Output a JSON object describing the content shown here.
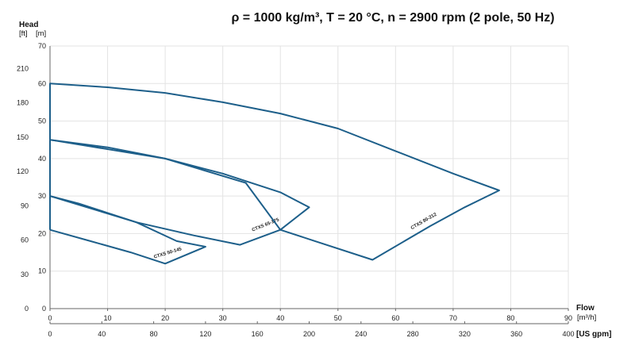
{
  "chart_data": {
    "type": "line",
    "title": "ρ = 1000 kg/m³, T = 20 °C, n = 2900 rpm (2 pole, 50 Hz)",
    "y_title": "Head",
    "y_units": {
      "ft": "[ft]",
      "m": "[m]"
    },
    "x_title": "Flow",
    "x_units": {
      "m3h": "[m³/h]",
      "usgpm": "[US gpm]"
    },
    "x_m3h": {
      "range": [
        0,
        90
      ],
      "ticks": [
        "0",
        "10",
        "20",
        "30",
        "40",
        "50",
        "60",
        "70",
        "80",
        "90"
      ]
    },
    "x_usgpm": {
      "range": [
        0,
        400
      ],
      "ticks": [
        "0",
        "40",
        "80",
        "120",
        "160",
        "200",
        "240",
        "280",
        "320",
        "360",
        "400"
      ]
    },
    "y_m": {
      "range": [
        0,
        70
      ],
      "ticks": [
        "0",
        "10",
        "20",
        "30",
        "40",
        "50",
        "60",
        "70"
      ]
    },
    "y_ft": {
      "ticks": [
        "0",
        "30",
        "60",
        "90",
        "120",
        "150",
        "180",
        "210"
      ]
    },
    "grid": true,
    "series": [
      {
        "name": "CTXS 50-145",
        "label_at": [
          20.5,
          14.5
        ],
        "label_angle": -17,
        "outline": [
          [
            0,
            21
          ],
          [
            7,
            18
          ],
          [
            14,
            15
          ],
          [
            20,
            12
          ],
          [
            27,
            16.5
          ],
          [
            22,
            18
          ],
          [
            15,
            23
          ],
          [
            10,
            25.5
          ],
          [
            5,
            28
          ],
          [
            0,
            30
          ],
          [
            0,
            21
          ]
        ]
      },
      {
        "name": "CTXS 65-175",
        "label_at": [
          37.5,
          22
        ],
        "label_angle": -22,
        "outline": [
          [
            0,
            30
          ],
          [
            15,
            23
          ],
          [
            25,
            19.5
          ],
          [
            33,
            17
          ],
          [
            40,
            21
          ],
          [
            45,
            27
          ],
          [
            40,
            31
          ],
          [
            30,
            36
          ],
          [
            20,
            40
          ],
          [
            10,
            43
          ],
          [
            0,
            45
          ],
          [
            0,
            30
          ]
        ]
      },
      {
        "name": "CTXS 80-212",
        "label_at": [
          65,
          23
        ],
        "label_angle": -30,
        "outline": [
          [
            0,
            45
          ],
          [
            20,
            40
          ],
          [
            34,
            33.5
          ],
          [
            40,
            21
          ],
          [
            46,
            18
          ],
          [
            56,
            13
          ],
          [
            66,
            22
          ],
          [
            72,
            27
          ],
          [
            78,
            31.5
          ],
          [
            70,
            36
          ],
          [
            60,
            42
          ],
          [
            50,
            48
          ],
          [
            40,
            52
          ],
          [
            30,
            55
          ],
          [
            20,
            57.5
          ],
          [
            10,
            59
          ],
          [
            0,
            60
          ],
          [
            0,
            45
          ]
        ]
      }
    ]
  }
}
